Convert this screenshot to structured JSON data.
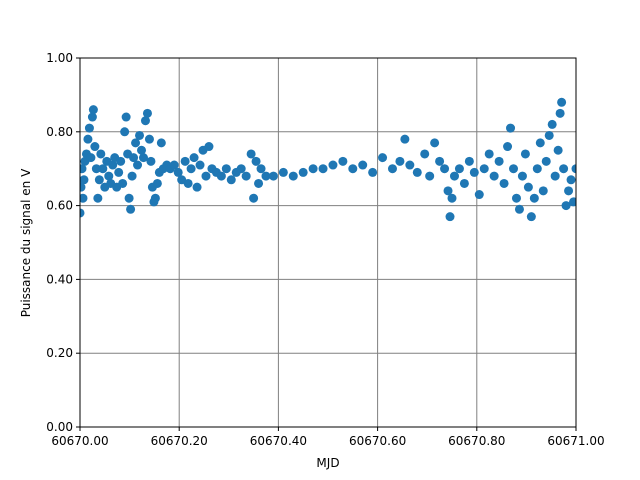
{
  "chart_data": {
    "type": "scatter",
    "x_label": "MJD",
    "y_label": "Puissance du signal en V",
    "x": [
      60670.0,
      60670.002,
      60670.004,
      60670.006,
      60670.008,
      60670.01,
      60670.013,
      60670.016,
      60670.019,
      60670.022,
      60670.025,
      60670.027,
      60670.03,
      60670.033,
      60670.036,
      60670.039,
      60670.042,
      60670.046,
      60670.05,
      60670.054,
      60670.058,
      60670.062,
      60670.066,
      60670.07,
      60670.074,
      60670.078,
      60670.082,
      60670.086,
      60670.09,
      60670.093,
      60670.096,
      60670.099,
      60670.102,
      60670.105,
      60670.108,
      60670.112,
      60670.116,
      60670.12,
      60670.124,
      60670.128,
      60670.132,
      60670.136,
      60670.14,
      60670.143,
      60670.146,
      60670.149,
      60670.152,
      60670.156,
      60670.16,
      60670.164,
      60670.168,
      60670.175,
      60670.182,
      60670.19,
      60670.198,
      60670.205,
      60670.212,
      60670.218,
      60670.224,
      60670.23,
      60670.236,
      60670.242,
      60670.248,
      60670.254,
      60670.26,
      60670.266,
      60670.275,
      60670.285,
      60670.295,
      60670.305,
      60670.315,
      60670.325,
      60670.335,
      60670.345,
      60670.35,
      60670.355,
      60670.36,
      60670.365,
      60670.375,
      60670.39,
      60670.41,
      60670.43,
      60670.45,
      60670.47,
      60670.49,
      60670.51,
      60670.53,
      60670.55,
      60670.57,
      60670.59,
      60670.61,
      60670.63,
      60670.645,
      60670.655,
      60670.665,
      60670.68,
      60670.695,
      60670.705,
      60670.715,
      60670.725,
      60670.735,
      60670.742,
      60670.746,
      60670.75,
      60670.755,
      60670.765,
      60670.775,
      60670.785,
      60670.795,
      60670.805,
      60670.815,
      60670.825,
      60670.835,
      60670.845,
      60670.855,
      60670.862,
      60670.868,
      60670.874,
      60670.88,
      60670.886,
      60670.892,
      60670.898,
      60670.904,
      60670.91,
      60670.916,
      60670.922,
      60670.928,
      60670.934,
      60670.94,
      60670.946,
      60670.952,
      60670.958,
      60670.964,
      60670.968,
      60670.971,
      60670.975,
      60670.98,
      60670.985,
      60670.99,
      60670.995,
      60671.0
    ],
    "values": [
      0.58,
      0.65,
      0.7,
      0.62,
      0.67,
      0.72,
      0.74,
      0.78,
      0.81,
      0.73,
      0.84,
      0.86,
      0.76,
      0.7,
      0.62,
      0.67,
      0.74,
      0.7,
      0.65,
      0.72,
      0.68,
      0.66,
      0.71,
      0.73,
      0.65,
      0.69,
      0.72,
      0.66,
      0.8,
      0.84,
      0.74,
      0.62,
      0.59,
      0.68,
      0.73,
      0.77,
      0.71,
      0.79,
      0.75,
      0.73,
      0.83,
      0.85,
      0.78,
      0.72,
      0.65,
      0.61,
      0.62,
      0.66,
      0.69,
      0.77,
      0.7,
      0.71,
      0.7,
      0.71,
      0.69,
      0.67,
      0.72,
      0.66,
      0.7,
      0.73,
      0.65,
      0.71,
      0.75,
      0.68,
      0.76,
      0.7,
      0.69,
      0.68,
      0.7,
      0.67,
      0.69,
      0.7,
      0.68,
      0.74,
      0.62,
      0.72,
      0.66,
      0.7,
      0.68,
      0.68,
      0.69,
      0.68,
      0.69,
      0.7,
      0.7,
      0.71,
      0.72,
      0.7,
      0.71,
      0.69,
      0.73,
      0.7,
      0.72,
      0.78,
      0.71,
      0.69,
      0.74,
      0.68,
      0.77,
      0.72,
      0.7,
      0.64,
      0.57,
      0.62,
      0.68,
      0.7,
      0.66,
      0.72,
      0.69,
      0.63,
      0.7,
      0.74,
      0.68,
      0.72,
      0.66,
      0.76,
      0.81,
      0.7,
      0.62,
      0.59,
      0.68,
      0.74,
      0.65,
      0.57,
      0.62,
      0.7,
      0.77,
      0.64,
      0.72,
      0.79,
      0.82,
      0.68,
      0.75,
      0.85,
      0.88,
      0.7,
      0.6,
      0.64,
      0.67,
      0.61,
      0.7
    ],
    "color": "#1f77b4",
    "xlim": [
      60670,
      60671
    ],
    "xticks": [
      {
        "value": 60670,
        "label": "60670.00"
      },
      {
        "value": 60670.2,
        "label": "60670.20"
      },
      {
        "value": 60670.4,
        "label": "60670.40"
      },
      {
        "value": 60670.6,
        "label": "60670.60"
      },
      {
        "value": 60670.8,
        "label": "60670.80"
      },
      {
        "value": 60671,
        "label": "60671.00"
      }
    ],
    "ylim": [
      0,
      1
    ],
    "yticks": [
      {
        "value": 0,
        "label": "0.00"
      },
      {
        "value": 0.2,
        "label": "0.20"
      },
      {
        "value": 0.4,
        "label": "0.40"
      },
      {
        "value": 0.6,
        "label": "0.60"
      },
      {
        "value": 0.8,
        "label": "0.80"
      },
      {
        "value": 1,
        "label": "1.00"
      }
    ],
    "grid": true,
    "grid_color": "#808080"
  }
}
